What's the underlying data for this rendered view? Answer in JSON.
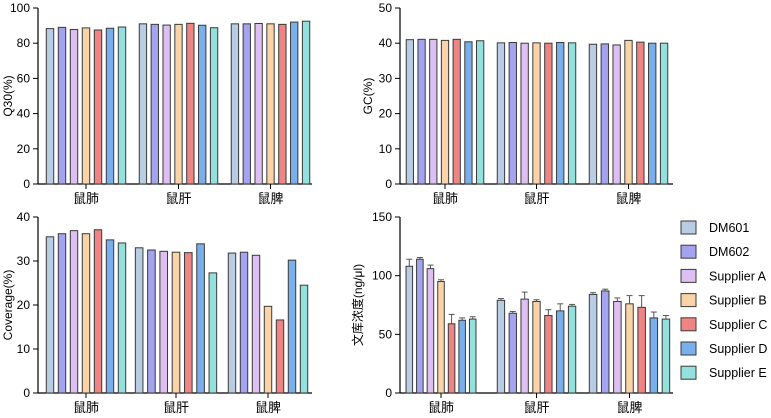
{
  "legend": [
    {
      "name": "DM601",
      "color": "#b8cce4"
    },
    {
      "name": "DM602",
      "color": "#a3a3f0"
    },
    {
      "name": "Supplier A",
      "color": "#ddbff2"
    },
    {
      "name": "Supplier B",
      "color": "#fbd3a8"
    },
    {
      "name": "Supplier C",
      "color": "#ef8484"
    },
    {
      "name": "Supplier D",
      "color": "#79b0ec"
    },
    {
      "name": "Supplier E",
      "color": "#94e0dc"
    }
  ],
  "chart_data": [
    {
      "type": "bar",
      "ylabel": "Q30(%)",
      "ylim": [
        0,
        100
      ],
      "yticks": [
        0,
        20,
        40,
        60,
        80,
        100
      ],
      "categories": [
        "鼠肺",
        "鼠肝",
        "鼠脾"
      ],
      "series": [
        {
          "name": "DM601",
          "values": [
            88.3,
            91.0,
            91.0
          ]
        },
        {
          "name": "DM602",
          "values": [
            89.0,
            90.7,
            91.0
          ]
        },
        {
          "name": "Supplier A",
          "values": [
            87.8,
            90.3,
            91.2
          ]
        },
        {
          "name": "Supplier B",
          "values": [
            88.7,
            90.7,
            91.0
          ]
        },
        {
          "name": "Supplier C",
          "values": [
            87.5,
            91.3,
            90.7
          ]
        },
        {
          "name": "Supplier D",
          "values": [
            88.5,
            90.2,
            92.0
          ]
        },
        {
          "name": "Supplier E",
          "values": [
            89.2,
            88.8,
            92.5
          ]
        }
      ]
    },
    {
      "type": "bar",
      "ylabel": "GC(%)",
      "ylim": [
        0,
        50
      ],
      "yticks": [
        0,
        10,
        20,
        30,
        40,
        50
      ],
      "categories": [
        "鼠肺",
        "鼠肝",
        "鼠脾"
      ],
      "series": [
        {
          "name": "DM601",
          "values": [
            41.0,
            40.1,
            39.7
          ]
        },
        {
          "name": "DM602",
          "values": [
            41.1,
            40.2,
            39.8
          ]
        },
        {
          "name": "Supplier A",
          "values": [
            41.1,
            40.0,
            39.5
          ]
        },
        {
          "name": "Supplier B",
          "values": [
            40.8,
            40.1,
            40.8
          ]
        },
        {
          "name": "Supplier C",
          "values": [
            41.1,
            40.0,
            40.3
          ]
        },
        {
          "name": "Supplier D",
          "values": [
            40.4,
            40.2,
            40.0
          ]
        },
        {
          "name": "Supplier E",
          "values": [
            40.7,
            40.1,
            40.0
          ]
        }
      ]
    },
    {
      "type": "bar",
      "ylabel": "Coverage(%)",
      "ylim": [
        0,
        40
      ],
      "yticks": [
        0,
        10,
        20,
        30,
        40
      ],
      "categories": [
        "鼠肺",
        "鼠肝",
        "鼠脾"
      ],
      "series": [
        {
          "name": "DM601",
          "values": [
            35.5,
            33.0,
            31.8
          ]
        },
        {
          "name": "DM602",
          "values": [
            36.2,
            32.5,
            32.0
          ]
        },
        {
          "name": "Supplier A",
          "values": [
            36.9,
            32.2,
            31.3
          ]
        },
        {
          "name": "Supplier B",
          "values": [
            36.2,
            32.0,
            19.7
          ]
        },
        {
          "name": "Supplier C",
          "values": [
            37.1,
            31.9,
            16.6
          ]
        },
        {
          "name": "Supplier D",
          "values": [
            34.8,
            33.9,
            30.2
          ]
        },
        {
          "name": "Supplier E",
          "values": [
            34.1,
            27.3,
            24.5
          ]
        }
      ]
    },
    {
      "type": "bar",
      "ylabel": "文库浓度(ng/μl)",
      "ylim": [
        0,
        150
      ],
      "yticks": [
        0,
        50,
        100,
        150
      ],
      "categories": [
        "鼠肺",
        "鼠肝",
        "鼠脾"
      ],
      "series": [
        {
          "name": "DM601",
          "values": [
            108,
            79,
            84
          ],
          "errors": [
            6,
            1.5,
            1.5
          ]
        },
        {
          "name": "DM602",
          "values": [
            114,
            68,
            87
          ],
          "errors": [
            1.5,
            1.5,
            1.5
          ]
        },
        {
          "name": "Supplier A",
          "values": [
            106,
            80,
            78
          ],
          "errors": [
            3,
            6,
            3
          ]
        },
        {
          "name": "Supplier B",
          "values": [
            95,
            78,
            76
          ],
          "errors": [
            1.5,
            1.5,
            7
          ]
        },
        {
          "name": "Supplier C",
          "values": [
            59,
            66,
            73
          ],
          "errors": [
            8,
            5,
            10
          ]
        },
        {
          "name": "Supplier D",
          "values": [
            62,
            70,
            64
          ],
          "errors": [
            2,
            6,
            5
          ]
        },
        {
          "name": "Supplier E",
          "values": [
            63,
            74,
            63
          ],
          "errors": [
            2,
            1.5,
            3
          ]
        }
      ]
    }
  ]
}
